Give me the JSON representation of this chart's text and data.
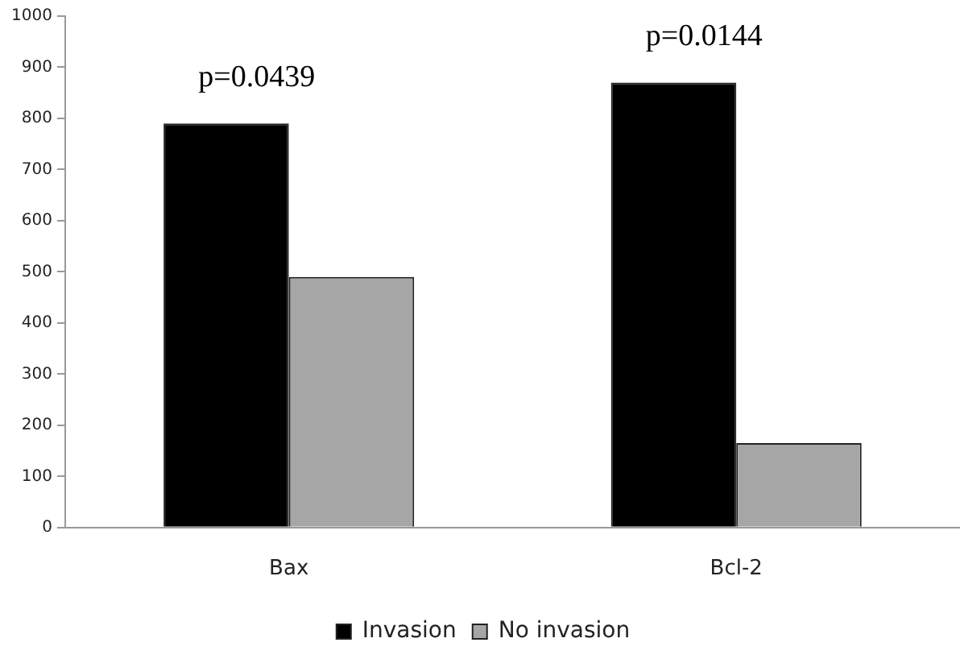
{
  "chart_data": {
    "type": "bar",
    "categories": [
      "Bax",
      "Bcl-2"
    ],
    "series": [
      {
        "name": "Invasion",
        "color": "#000000",
        "values": [
          790,
          870
        ]
      },
      {
        "name": "No invasion",
        "color": "#a6a6a6",
        "values": [
          490,
          165
        ]
      }
    ],
    "ylim": [
      0,
      1000
    ],
    "yticks": [
      0,
      100,
      200,
      300,
      400,
      500,
      600,
      700,
      800,
      900,
      1000
    ],
    "grid": false,
    "legend": "bottom",
    "annotations": [
      "p=0.0439",
      "p=0.0144"
    ]
  }
}
